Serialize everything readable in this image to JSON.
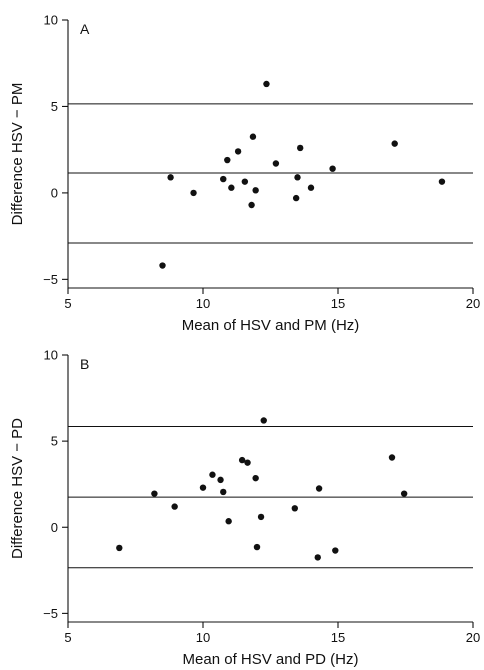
{
  "chart_data": [
    {
      "type": "scatter",
      "panel_label": "A",
      "xlabel": "Mean of HSV and PM (Hz)",
      "ylabel": "Difference HSV − PM",
      "xlim": [
        5,
        20
      ],
      "ylim": [
        -5.5,
        10
      ],
      "x_ticks": [
        5,
        10,
        15,
        20
      ],
      "y_ticks": [
        -5,
        0,
        5,
        10
      ],
      "y_tick_labels": [
        "−5",
        "0",
        "5",
        "10"
      ],
      "reference_lines": [
        5.15,
        1.15,
        -2.9
      ],
      "points": [
        {
          "x": 8.5,
          "y": -4.2
        },
        {
          "x": 8.8,
          "y": 0.9
        },
        {
          "x": 9.65,
          "y": 0.0
        },
        {
          "x": 10.75,
          "y": 0.8
        },
        {
          "x": 10.9,
          "y": 1.9
        },
        {
          "x": 11.05,
          "y": 0.3
        },
        {
          "x": 11.3,
          "y": 2.4
        },
        {
          "x": 11.55,
          "y": 0.65
        },
        {
          "x": 11.8,
          "y": -0.7
        },
        {
          "x": 11.85,
          "y": 3.25
        },
        {
          "x": 11.95,
          "y": 0.15
        },
        {
          "x": 12.35,
          "y": 6.3
        },
        {
          "x": 12.7,
          "y": 1.7
        },
        {
          "x": 13.45,
          "y": -0.3
        },
        {
          "x": 13.5,
          "y": 0.9
        },
        {
          "x": 13.6,
          "y": 2.6
        },
        {
          "x": 14.0,
          "y": 0.3
        },
        {
          "x": 14.8,
          "y": 1.4
        },
        {
          "x": 17.1,
          "y": 2.85
        },
        {
          "x": 18.85,
          "y": 0.65
        }
      ],
      "grid": false
    },
    {
      "type": "scatter",
      "panel_label": "B",
      "xlabel": "Mean of HSV and PD (Hz)",
      "ylabel": "Difference HSV − PD",
      "xlim": [
        5,
        20
      ],
      "ylim": [
        -5.5,
        10
      ],
      "x_ticks": [
        5,
        10,
        15,
        20
      ],
      "y_ticks": [
        -5,
        0,
        5,
        10
      ],
      "y_tick_labels": [
        "−5",
        "0",
        "5",
        "10"
      ],
      "reference_lines": [
        5.85,
        1.75,
        -2.35
      ],
      "points": [
        {
          "x": 6.9,
          "y": -1.2
        },
        {
          "x": 8.2,
          "y": 1.95
        },
        {
          "x": 8.95,
          "y": 1.2
        },
        {
          "x": 10.0,
          "y": 2.3
        },
        {
          "x": 10.35,
          "y": 3.05
        },
        {
          "x": 10.65,
          "y": 2.75
        },
        {
          "x": 10.75,
          "y": 2.05
        },
        {
          "x": 10.95,
          "y": 0.35
        },
        {
          "x": 11.45,
          "y": 3.9
        },
        {
          "x": 11.65,
          "y": 3.75
        },
        {
          "x": 11.95,
          "y": 2.85
        },
        {
          "x": 12.0,
          "y": -1.15
        },
        {
          "x": 12.15,
          "y": 0.6
        },
        {
          "x": 12.25,
          "y": 6.2
        },
        {
          "x": 13.4,
          "y": 1.1
        },
        {
          "x": 14.25,
          "y": -1.75
        },
        {
          "x": 14.3,
          "y": 2.25
        },
        {
          "x": 14.9,
          "y": -1.35
        },
        {
          "x": 17.0,
          "y": 4.05
        },
        {
          "x": 17.45,
          "y": 1.95
        }
      ],
      "grid": false
    }
  ]
}
